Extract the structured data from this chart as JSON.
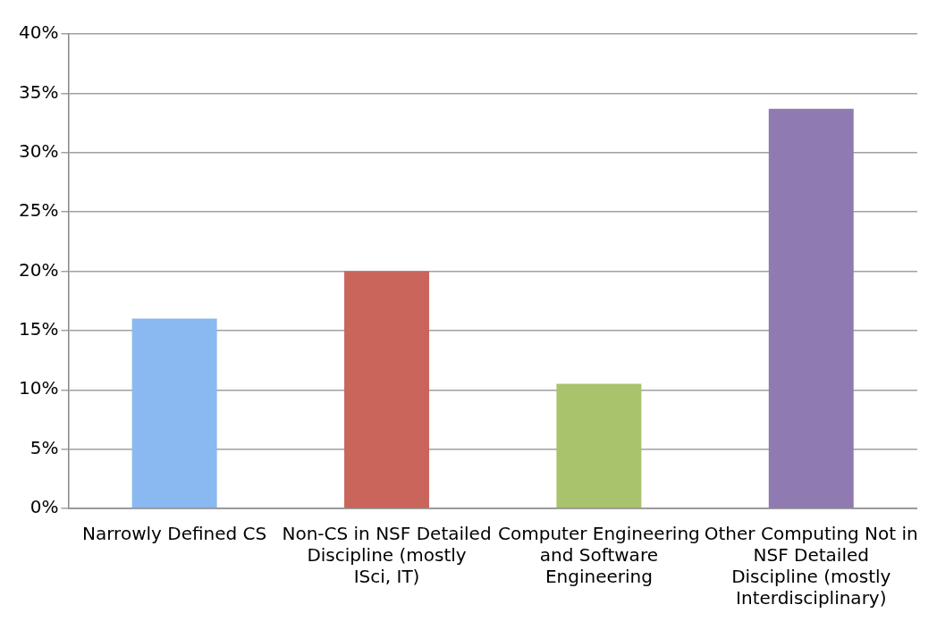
{
  "chart_data": {
    "type": "bar",
    "categories": [
      "Narrowly Defined CS",
      "Non-CS in NSF Detailed Discipline (mostly ISci, IT)",
      "Computer Engineering and Software Engineering",
      "Other Computing Not in NSF Detailed Discipline (mostly Interdisciplinary)"
    ],
    "values": [
      16,
      20,
      10.5,
      33.7
    ],
    "colors": [
      "#8ab8f0",
      "#c9655a",
      "#a9c26c",
      "#8f7ab2"
    ],
    "ylim": [
      0,
      40
    ],
    "yticks": [
      {
        "value": 0,
        "label": "0%"
      },
      {
        "value": 5,
        "label": "5%"
      },
      {
        "value": 10,
        "label": "10%"
      },
      {
        "value": 15,
        "label": "15%"
      },
      {
        "value": 20,
        "label": "20%"
      },
      {
        "value": 25,
        "label": "25%"
      },
      {
        "value": 30,
        "label": "30%"
      },
      {
        "value": 35,
        "label": "35%"
      },
      {
        "value": 40,
        "label": "40%"
      }
    ],
    "grid": "y",
    "legend": false
  }
}
